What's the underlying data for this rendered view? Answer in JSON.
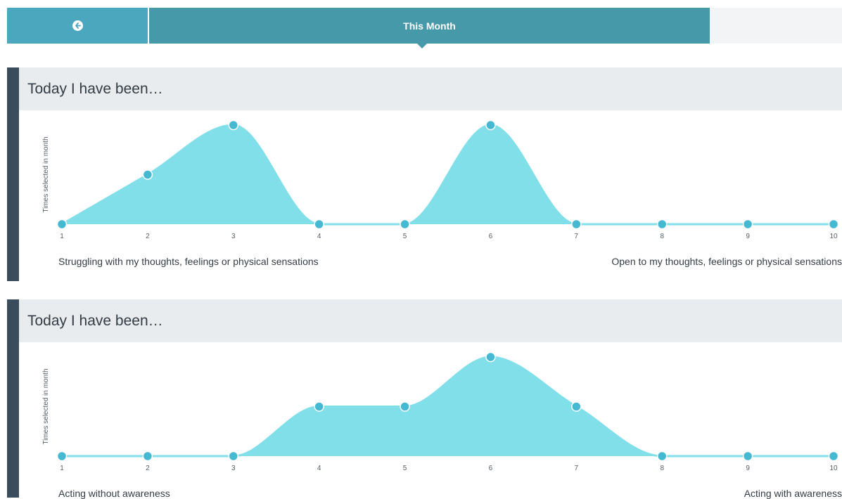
{
  "nav": {
    "period_label": "This Month",
    "back_icon": "arrow-left-circle-icon"
  },
  "colors": {
    "back": "#4aa7be",
    "period": "#4599a9",
    "fill": "#81dfe9",
    "point": "#45b9d2",
    "accent": "#3b4c5c"
  },
  "chart_data": [
    {
      "type": "area",
      "title": "Today I have been…",
      "ylabel": "Times selected in month",
      "x": [
        1,
        2,
        3,
        4,
        5,
        6,
        7,
        8,
        9,
        10
      ],
      "values": [
        0,
        1,
        2,
        0,
        0,
        2,
        0,
        0,
        0,
        0
      ],
      "ylim": [
        0,
        2
      ],
      "anchor_low": "Struggling with my thoughts, feelings or physical sensations",
      "anchor_high": "Open to my thoughts, feelings or physical sensations"
    },
    {
      "type": "area",
      "title": "Today I have been…",
      "ylabel": "Times selected in month",
      "x": [
        1,
        2,
        3,
        4,
        5,
        6,
        7,
        8,
        9,
        10
      ],
      "values": [
        0,
        0,
        0,
        1,
        1,
        2,
        1,
        0,
        0,
        0
      ],
      "ylim": [
        0,
        2
      ],
      "anchor_low": "Acting without awareness",
      "anchor_high": "Acting with awareness"
    }
  ]
}
